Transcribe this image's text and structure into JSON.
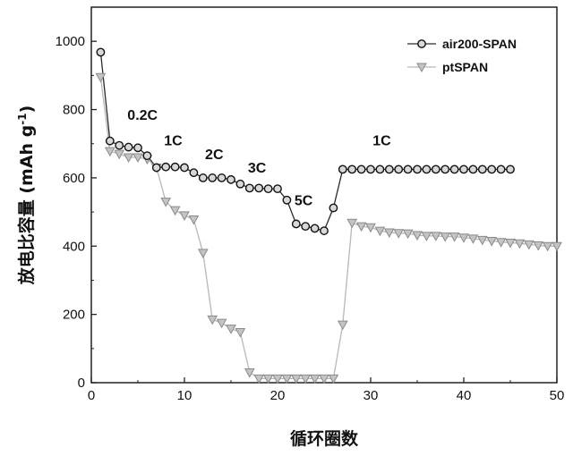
{
  "chart_data": {
    "type": "scatter",
    "title": "",
    "xlabel": "循环圈数",
    "ylabel_main": "放电比容量 (mAh g",
    "ylabel_sup": "-1",
    "ylabel_close": ")",
    "xlim": [
      0,
      50
    ],
    "ylim": [
      0,
      1100
    ],
    "xticks": [
      0,
      10,
      20,
      30,
      40,
      50
    ],
    "yticks": [
      0,
      200,
      400,
      600,
      800,
      1000
    ],
    "legend_position": "top-right",
    "grid": false,
    "rate_labels": [
      {
        "text": "0.2C",
        "x": 5.5,
        "y": 770
      },
      {
        "text": "1C",
        "x": 8.8,
        "y": 695
      },
      {
        "text": "2C",
        "x": 13.2,
        "y": 655
      },
      {
        "text": "3C",
        "x": 17.8,
        "y": 615
      },
      {
        "text": "5C",
        "x": 22.8,
        "y": 520
      },
      {
        "text": "1C",
        "x": 31.2,
        "y": 695
      }
    ],
    "series": [
      {
        "name": "air200-SPAN",
        "marker": "circle",
        "color": "#2a2a2a",
        "x": [
          1,
          2,
          3,
          4,
          5,
          6,
          7,
          8,
          9,
          10,
          11,
          12,
          13,
          14,
          15,
          16,
          17,
          18,
          19,
          20,
          21,
          22,
          23,
          24,
          25,
          26,
          27,
          28,
          29,
          30,
          31,
          32,
          33,
          34,
          35,
          36,
          37,
          38,
          39,
          40,
          41,
          42,
          43,
          44,
          45
        ],
        "values": [
          968,
          708,
          695,
          690,
          688,
          665,
          630,
          632,
          632,
          630,
          615,
          600,
          600,
          600,
          595,
          582,
          570,
          570,
          568,
          568,
          535,
          465,
          458,
          452,
          445,
          512,
          625,
          625,
          625,
          625,
          625,
          625,
          625,
          625,
          625,
          625,
          625,
          625,
          625,
          625,
          625,
          625,
          625,
          625,
          625
        ]
      },
      {
        "name": "ptSPAN",
        "marker": "triangle-down",
        "color": "#b8b8b8",
        "x": [
          1,
          2,
          3,
          4,
          5,
          6,
          7,
          8,
          9,
          10,
          11,
          12,
          13,
          14,
          15,
          16,
          17,
          18,
          19,
          20,
          21,
          22,
          23,
          24,
          25,
          26,
          27,
          28,
          29,
          30,
          31,
          32,
          33,
          34,
          35,
          36,
          37,
          38,
          39,
          40,
          41,
          42,
          43,
          44,
          45,
          46,
          47,
          48,
          49,
          50
        ],
        "values": [
          895,
          678,
          670,
          660,
          660,
          655,
          630,
          530,
          505,
          490,
          478,
          380,
          185,
          175,
          158,
          148,
          30,
          12,
          12,
          12,
          12,
          12,
          12,
          12,
          12,
          12,
          170,
          468,
          458,
          455,
          445,
          440,
          438,
          437,
          432,
          430,
          430,
          428,
          428,
          425,
          422,
          418,
          415,
          412,
          410,
          408,
          405,
          402,
          400,
          400
        ]
      }
    ]
  }
}
